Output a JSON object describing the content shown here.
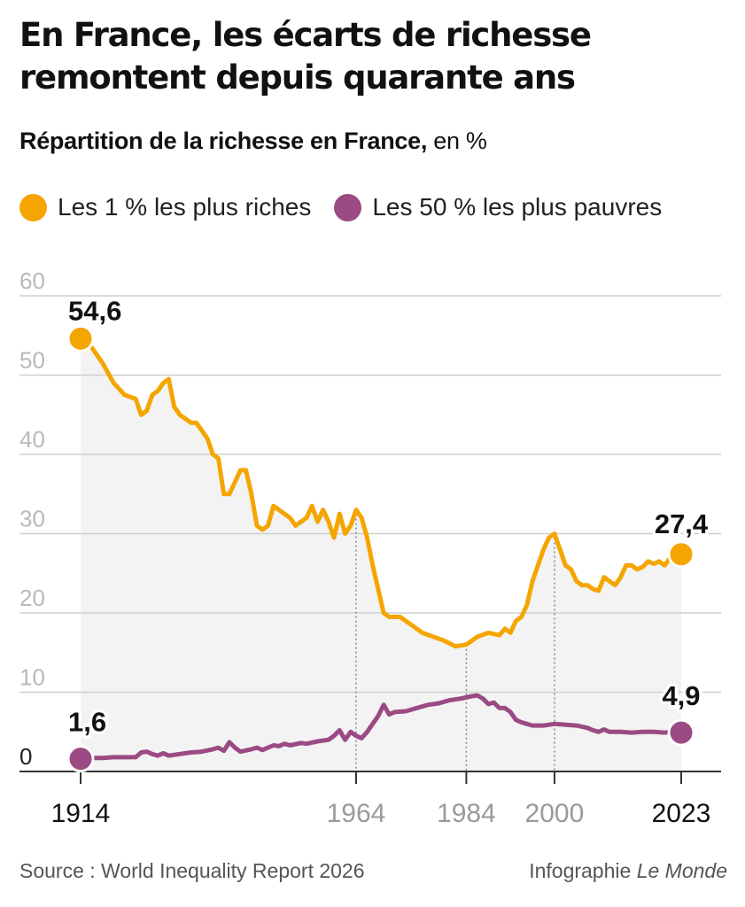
{
  "title": "En France, les écarts de richesse remontent depuis quarante ans",
  "subtitle_bold": "Répartition de la richesse en France,",
  "subtitle_unit": "en %",
  "source": "Source : World Inequality Report 2026",
  "credit_prefix": "Infographie",
  "credit_outlet": "Le Monde",
  "colors": {
    "top1": "#f5a500",
    "bottom50": "#9b4a83",
    "area": "#f3f3f3",
    "grid": "#cfcfcf",
    "axis": "#333333",
    "guide": "#8a8a8a"
  },
  "chart_data": {
    "type": "line",
    "ylim": [
      0,
      60
    ],
    "yticks": [
      "0",
      "10",
      "20",
      "30",
      "40",
      "50",
      "60"
    ],
    "xlim": [
      1914,
      2023
    ],
    "xticks": [
      {
        "year": 1914,
        "label": "1914",
        "muted": false
      },
      {
        "year": 1964,
        "label": "1964",
        "muted": true
      },
      {
        "year": 1984,
        "label": "1984",
        "muted": true
      },
      {
        "year": 2000,
        "label": "2000",
        "muted": true
      },
      {
        "year": 2023,
        "label": "2023",
        "muted": false
      }
    ],
    "guides": [
      1964,
      1984,
      2000
    ],
    "grid": true,
    "legend_position": "top-left",
    "series": [
      {
        "name": "Les 1 % les plus riches",
        "color": "#f5a500",
        "area": true,
        "start_label": "54,6",
        "end_label": "27,4",
        "points": [
          [
            1914,
            54.6
          ],
          [
            1916,
            53.5
          ],
          [
            1918,
            51.5
          ],
          [
            1920,
            49
          ],
          [
            1922,
            47.5
          ],
          [
            1924,
            47
          ],
          [
            1925,
            45
          ],
          [
            1926,
            45.5
          ],
          [
            1927,
            47.5
          ],
          [
            1928,
            48
          ],
          [
            1929,
            49
          ],
          [
            1930,
            49.5
          ],
          [
            1931,
            46
          ],
          [
            1932,
            45
          ],
          [
            1933,
            44.5
          ],
          [
            1934,
            44
          ],
          [
            1935,
            44
          ],
          [
            1936,
            43
          ],
          [
            1937,
            42
          ],
          [
            1938,
            40
          ],
          [
            1939,
            39.5
          ],
          [
            1940,
            35
          ],
          [
            1941,
            35
          ],
          [
            1942,
            36.5
          ],
          [
            1943,
            38
          ],
          [
            1944,
            38
          ],
          [
            1945,
            35
          ],
          [
            1946,
            31
          ],
          [
            1947,
            30.5
          ],
          [
            1948,
            31
          ],
          [
            1949,
            33.5
          ],
          [
            1950,
            33
          ],
          [
            1951,
            32.5
          ],
          [
            1952,
            32
          ],
          [
            1953,
            31
          ],
          [
            1954,
            31.5
          ],
          [
            1955,
            32
          ],
          [
            1956,
            33.5
          ],
          [
            1957,
            31.5
          ],
          [
            1958,
            33
          ],
          [
            1959,
            31.5
          ],
          [
            1960,
            29.5
          ],
          [
            1961,
            32.5
          ],
          [
            1962,
            30
          ],
          [
            1963,
            31
          ],
          [
            1964,
            33
          ],
          [
            1965,
            32
          ],
          [
            1966,
            29.5
          ],
          [
            1967,
            26
          ],
          [
            1968,
            23
          ],
          [
            1969,
            20
          ],
          [
            1970,
            19.5
          ],
          [
            1972,
            19.5
          ],
          [
            1974,
            18.5
          ],
          [
            1976,
            17.5
          ],
          [
            1978,
            17
          ],
          [
            1980,
            16.5
          ],
          [
            1982,
            15.8
          ],
          [
            1984,
            16
          ],
          [
            1986,
            17
          ],
          [
            1988,
            17.5
          ],
          [
            1990,
            17.2
          ],
          [
            1991,
            18
          ],
          [
            1992,
            17.5
          ],
          [
            1993,
            19
          ],
          [
            1994,
            19.5
          ],
          [
            1995,
            21
          ],
          [
            1996,
            24
          ],
          [
            1997,
            26
          ],
          [
            1998,
            28
          ],
          [
            1999,
            29.5
          ],
          [
            2000,
            30
          ],
          [
            2001,
            28
          ],
          [
            2002,
            26
          ],
          [
            2003,
            25.5
          ],
          [
            2004,
            24
          ],
          [
            2005,
            23.5
          ],
          [
            2006,
            23.5
          ],
          [
            2007,
            23
          ],
          [
            2008,
            22.8
          ],
          [
            2009,
            24.5
          ],
          [
            2010,
            24
          ],
          [
            2011,
            23.5
          ],
          [
            2012,
            24.5
          ],
          [
            2013,
            26
          ],
          [
            2014,
            26
          ],
          [
            2015,
            25.5
          ],
          [
            2016,
            25.8
          ],
          [
            2017,
            26.5
          ],
          [
            2018,
            26.2
          ],
          [
            2019,
            26.5
          ],
          [
            2020,
            26
          ],
          [
            2021,
            27
          ],
          [
            2022,
            27
          ],
          [
            2023,
            27.4
          ]
        ]
      },
      {
        "name": "Les 50 % les plus pauvres",
        "color": "#9b4a83",
        "area": false,
        "start_label": "1,6",
        "end_label": "4,9",
        "points": [
          [
            1914,
            1.6
          ],
          [
            1916,
            1.7
          ],
          [
            1918,
            1.7
          ],
          [
            1920,
            1.8
          ],
          [
            1922,
            1.8
          ],
          [
            1924,
            1.8
          ],
          [
            1925,
            2.4
          ],
          [
            1926,
            2.5
          ],
          [
            1927,
            2.2
          ],
          [
            1928,
            2
          ],
          [
            1929,
            2.3
          ],
          [
            1930,
            2
          ],
          [
            1932,
            2.2
          ],
          [
            1934,
            2.4
          ],
          [
            1936,
            2.5
          ],
          [
            1938,
            2.8
          ],
          [
            1939,
            3
          ],
          [
            1940,
            2.6
          ],
          [
            1941,
            3.7
          ],
          [
            1942,
            3
          ],
          [
            1943,
            2.5
          ],
          [
            1945,
            2.8
          ],
          [
            1946,
            3
          ],
          [
            1947,
            2.7
          ],
          [
            1948,
            3
          ],
          [
            1949,
            3.3
          ],
          [
            1950,
            3.2
          ],
          [
            1951,
            3.5
          ],
          [
            1952,
            3.3
          ],
          [
            1954,
            3.6
          ],
          [
            1955,
            3.5
          ],
          [
            1957,
            3.8
          ],
          [
            1959,
            4
          ],
          [
            1960,
            4.5
          ],
          [
            1961,
            5.2
          ],
          [
            1962,
            4
          ],
          [
            1963,
            5
          ],
          [
            1964,
            4.5
          ],
          [
            1965,
            4.2
          ],
          [
            1966,
            5
          ],
          [
            1967,
            6
          ],
          [
            1968,
            7
          ],
          [
            1969,
            8.4
          ],
          [
            1970,
            7.2
          ],
          [
            1971,
            7.5
          ],
          [
            1973,
            7.6
          ],
          [
            1975,
            8
          ],
          [
            1977,
            8.4
          ],
          [
            1979,
            8.6
          ],
          [
            1981,
            9
          ],
          [
            1983,
            9.2
          ],
          [
            1985,
            9.5
          ],
          [
            1986,
            9.6
          ],
          [
            1987,
            9.2
          ],
          [
            1988,
            8.5
          ],
          [
            1989,
            8.7
          ],
          [
            1990,
            8
          ],
          [
            1991,
            8
          ],
          [
            1992,
            7.5
          ],
          [
            1993,
            6.5
          ],
          [
            1994,
            6.2
          ],
          [
            1995,
            6
          ],
          [
            1996,
            5.8
          ],
          [
            1998,
            5.8
          ],
          [
            2000,
            6
          ],
          [
            2002,
            5.9
          ],
          [
            2004,
            5.8
          ],
          [
            2006,
            5.5
          ],
          [
            2007,
            5.2
          ],
          [
            2008,
            5
          ],
          [
            2009,
            5.3
          ],
          [
            2010,
            5
          ],
          [
            2012,
            5
          ],
          [
            2014,
            4.9
          ],
          [
            2016,
            5
          ],
          [
            2018,
            5
          ],
          [
            2020,
            4.9
          ],
          [
            2021,
            5
          ],
          [
            2023,
            4.9
          ]
        ]
      }
    ]
  }
}
